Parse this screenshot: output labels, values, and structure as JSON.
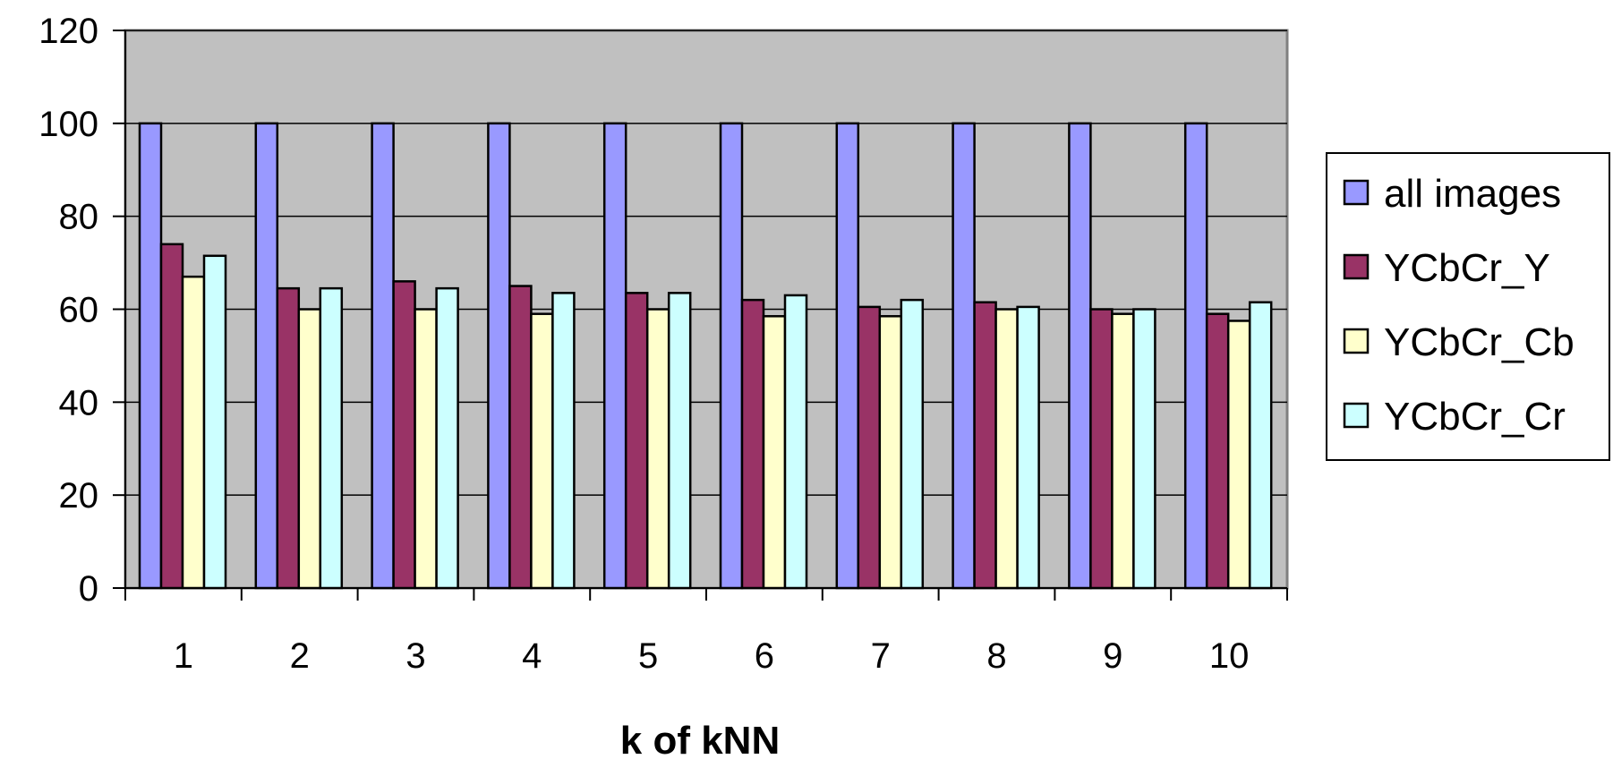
{
  "chart_data": {
    "type": "bar",
    "title": "",
    "xlabel": "k of kNN",
    "ylabel": "",
    "ylim": [
      0,
      120
    ],
    "yticks": [
      0,
      20,
      40,
      60,
      80,
      100,
      120
    ],
    "grid": true,
    "legend_position": "right",
    "categories": [
      "1",
      "2",
      "3",
      "4",
      "5",
      "6",
      "7",
      "8",
      "9",
      "10"
    ],
    "series": [
      {
        "name": "all images",
        "color": "#9999ff",
        "values": [
          100,
          100,
          100,
          100,
          100,
          100,
          100,
          100,
          100,
          100
        ]
      },
      {
        "name": "YCbCr_Y",
        "color": "#993366",
        "values": [
          74,
          64.5,
          66,
          65,
          63.5,
          62,
          60.5,
          61.5,
          60,
          59
        ]
      },
      {
        "name": "YCbCr_Cb",
        "color": "#ffffcc",
        "values": [
          67,
          60,
          60,
          59,
          60,
          58.5,
          58.5,
          60,
          59,
          57.5
        ]
      },
      {
        "name": "YCbCr_Cr",
        "color": "#ccffff",
        "values": [
          71.5,
          64.5,
          64.5,
          63.5,
          63.5,
          63,
          62,
          60.5,
          60,
          61.5
        ]
      }
    ],
    "plot_background": "#c0c0c0"
  }
}
